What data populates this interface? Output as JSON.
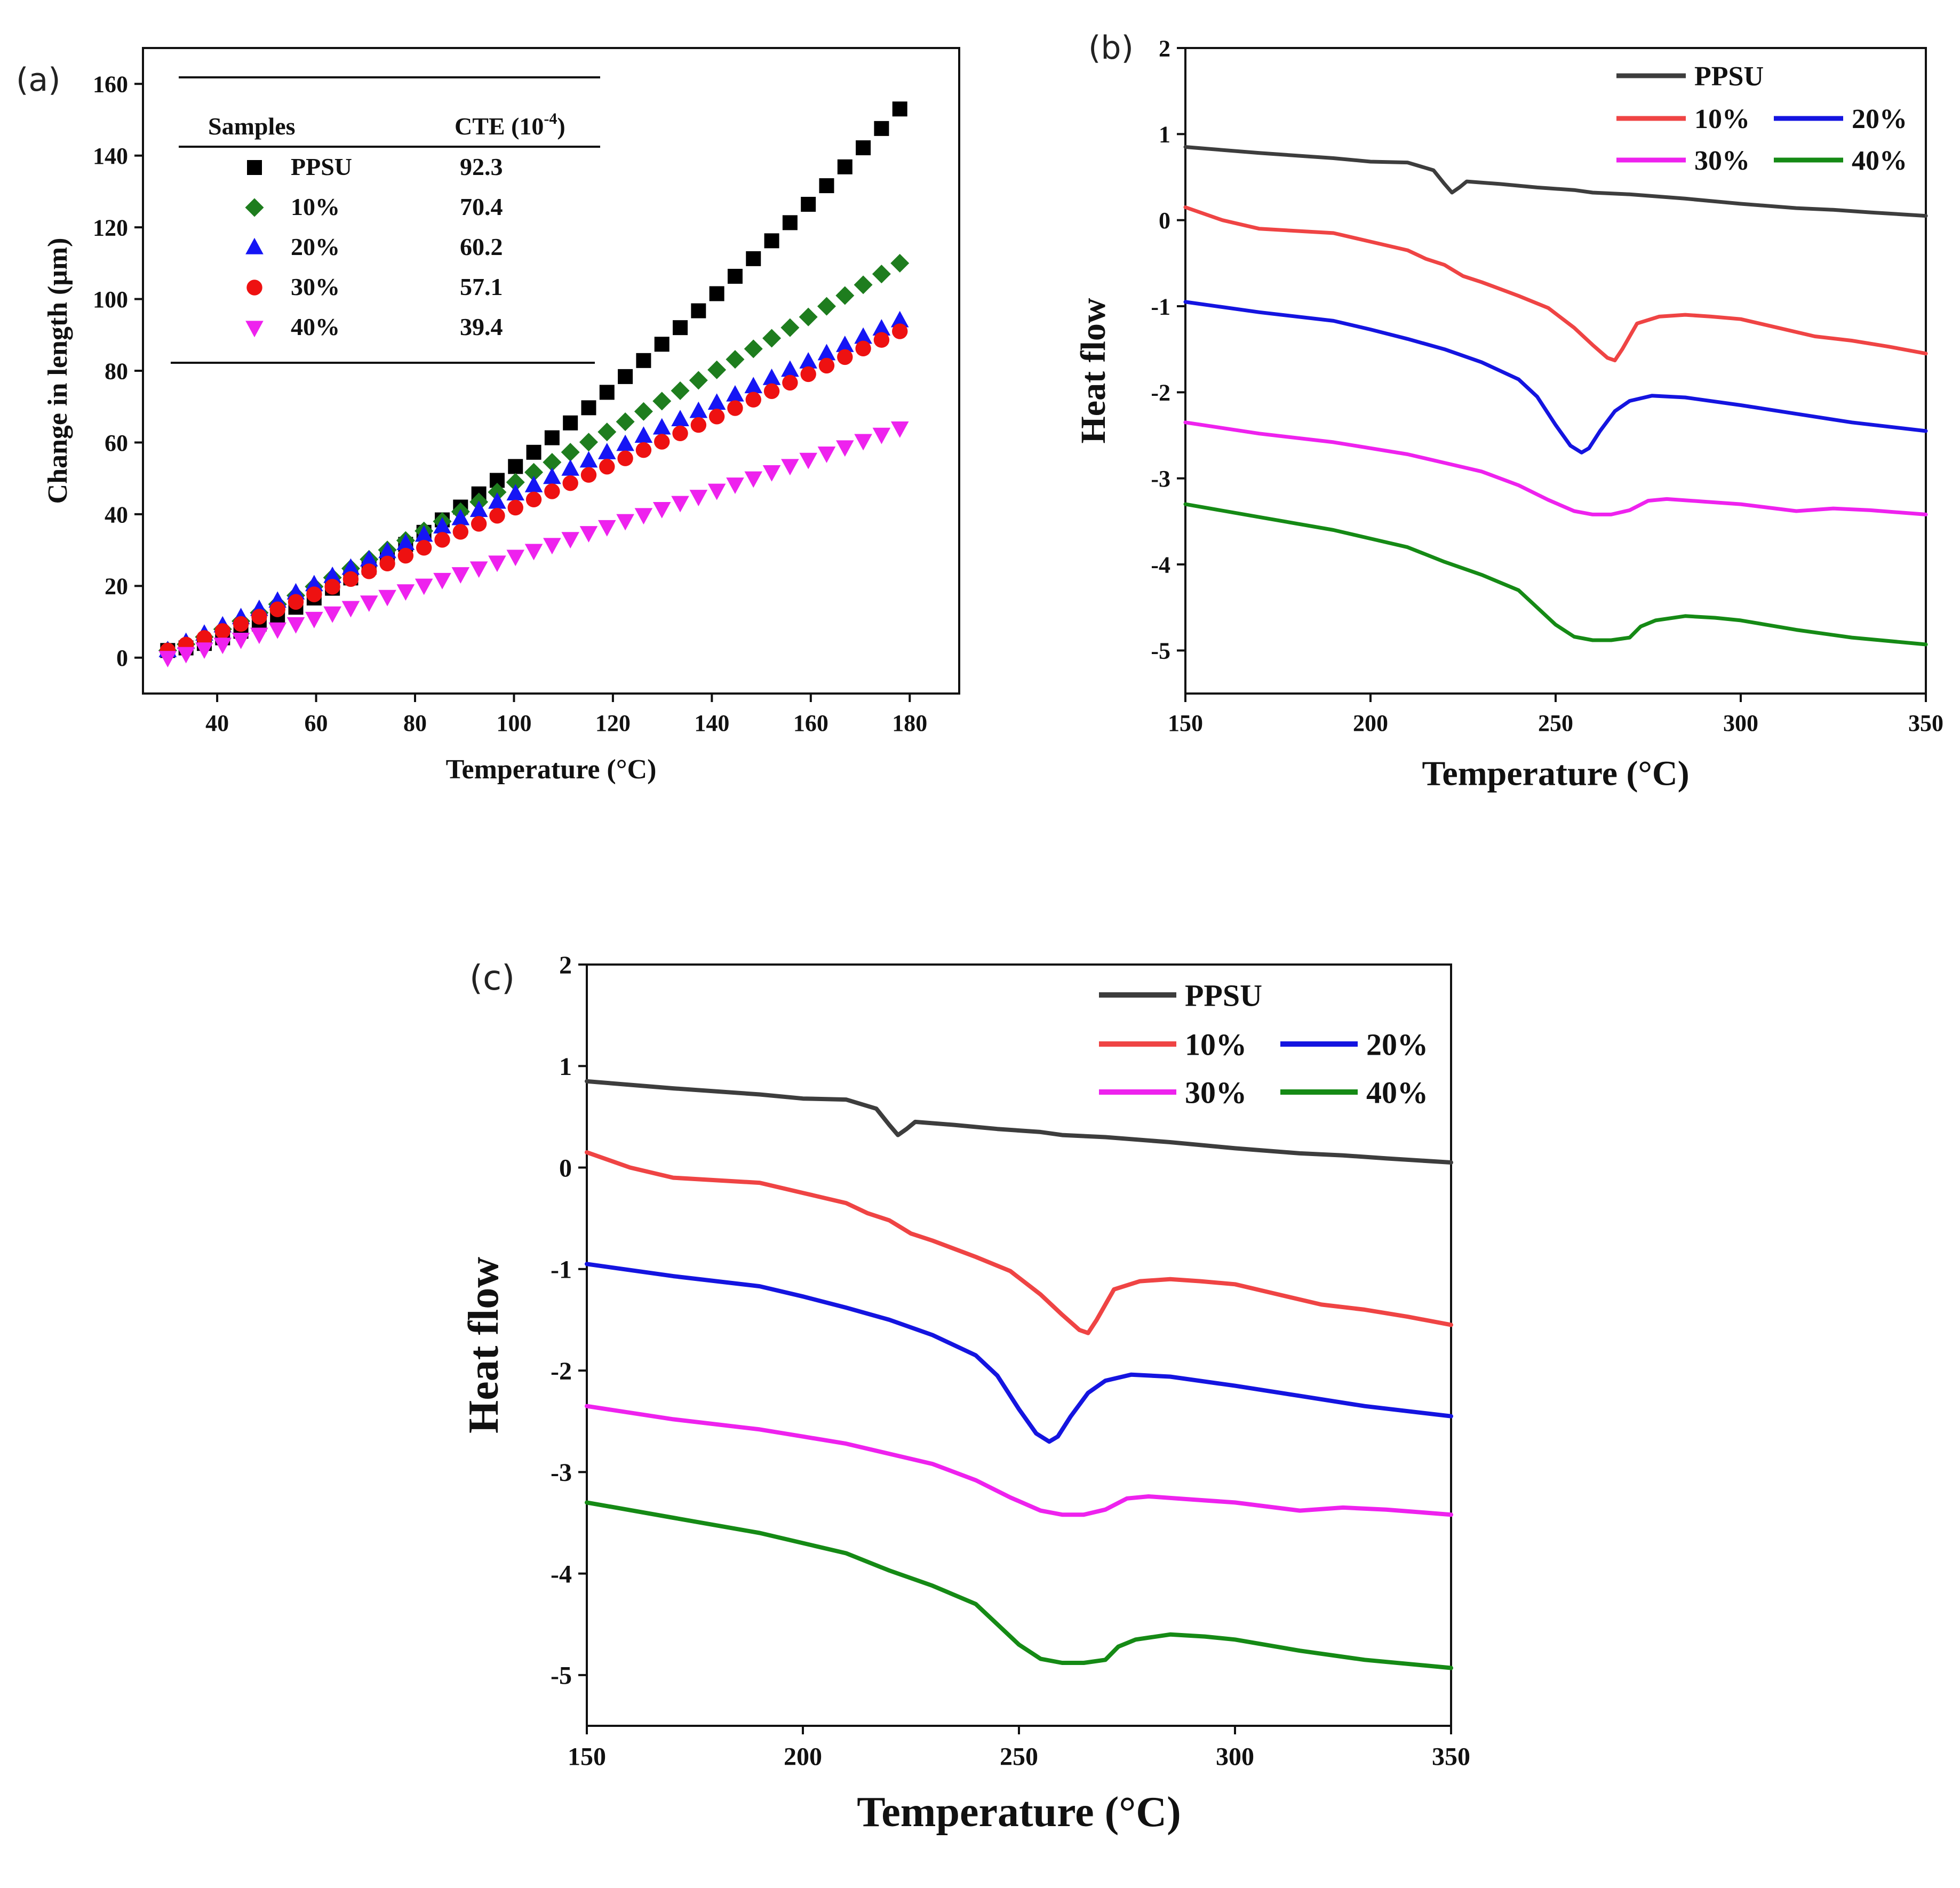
{
  "chart_data": [
    {
      "id": "a",
      "panel_label": "(a)",
      "type": "scatter",
      "xlabel": "Temperature (°C)",
      "ylabel": "Change in length (μm)",
      "xlim": [
        25,
        190
      ],
      "ylim": [
        -10,
        170
      ],
      "xticks": [
        40,
        60,
        80,
        100,
        120,
        140,
        160,
        180
      ],
      "yticks": [
        0,
        20,
        40,
        60,
        80,
        100,
        120,
        140,
        160
      ],
      "table": {
        "headers": [
          "Samples",
          "CTE (10",
          "-4",
          ")"
        ],
        "rows": [
          {
            "sample": "PPSU",
            "cte": "92.3"
          },
          {
            "sample": "10%",
            "cte": "70.4"
          },
          {
            "sample": "20%",
            "cte": "60.2"
          },
          {
            "sample": "30%",
            "cte": "57.1"
          },
          {
            "sample": "40%",
            "cte": "39.4"
          }
        ]
      },
      "series": [
        {
          "name": "PPSU",
          "color": "#000000",
          "marker": "square",
          "x_start": 30,
          "x_end": 178,
          "y_start": 2,
          "y_end": 153,
          "curve": 1.45
        },
        {
          "name": "10%",
          "color": "#1e7d1e",
          "marker": "diamond",
          "x_start": 30,
          "x_end": 178,
          "y_start": 2,
          "y_end": 110,
          "curve": 1.12
        },
        {
          "name": "20%",
          "color": "#1515f5",
          "marker": "triangle-up",
          "x_start": 30,
          "x_end": 178,
          "y_start": 2,
          "y_end": 94,
          "curve": 1.0
        },
        {
          "name": "30%",
          "color": "#ee1111",
          "marker": "circle",
          "x_start": 30,
          "x_end": 178,
          "y_start": 2,
          "y_end": 91,
          "curve": 1.08
        },
        {
          "name": "40%",
          "color": "#ee22ee",
          "marker": "triangle-down",
          "x_start": 30,
          "x_end": 178,
          "y_start": 0,
          "y_end": 64,
          "curve": 1.1
        }
      ]
    },
    {
      "id": "b",
      "panel_label": "(b)",
      "type": "line",
      "xlabel": "Temperature (°C)",
      "ylabel": "Heat flow",
      "xlim": [
        150,
        350
      ],
      "ylim": [
        -5.5,
        2
      ],
      "xticks": [
        150,
        200,
        250,
        300,
        350
      ],
      "yticks": [
        2,
        1,
        0,
        -1,
        -2,
        -3,
        -4,
        -5
      ],
      "legend": [
        "PPSU",
        "10%",
        "20%",
        "30%",
        "40%"
      ],
      "series": [
        {
          "name": "PPSU",
          "color": "#3d3d3d",
          "x": [
            150,
            170,
            190,
            200,
            210,
            217,
            220,
            222,
            224,
            226,
            235,
            245,
            255,
            260,
            270,
            285,
            300,
            315,
            325,
            335,
            350
          ],
          "y": [
            0.85,
            0.78,
            0.72,
            0.68,
            0.67,
            0.58,
            0.42,
            0.32,
            0.38,
            0.45,
            0.42,
            0.38,
            0.35,
            0.32,
            0.3,
            0.25,
            0.19,
            0.14,
            0.12,
            0.09,
            0.05
          ]
        },
        {
          "name": "10%",
          "color": "#ef4444",
          "x": [
            150,
            160,
            170,
            190,
            200,
            210,
            215,
            220,
            225,
            230,
            240,
            248,
            255,
            260,
            264,
            266,
            268,
            272,
            278,
            285,
            292,
            300,
            310,
            320,
            330,
            340,
            350
          ],
          "y": [
            0.15,
            0.0,
            -0.1,
            -0.15,
            -0.25,
            -0.35,
            -0.45,
            -0.52,
            -0.65,
            -0.72,
            -0.88,
            -1.02,
            -1.25,
            -1.45,
            -1.6,
            -1.63,
            -1.5,
            -1.2,
            -1.12,
            -1.1,
            -1.12,
            -1.15,
            -1.25,
            -1.35,
            -1.4,
            -1.47,
            -1.55
          ]
        },
        {
          "name": "20%",
          "color": "#1414e0",
          "x": [
            150,
            170,
            190,
            200,
            210,
            220,
            230,
            240,
            245,
            250,
            254,
            257,
            259,
            262,
            266,
            270,
            276,
            285,
            300,
            315,
            330,
            350
          ],
          "y": [
            -0.95,
            -1.07,
            -1.17,
            -1.27,
            -1.38,
            -1.5,
            -1.65,
            -1.85,
            -2.05,
            -2.38,
            -2.62,
            -2.7,
            -2.65,
            -2.45,
            -2.22,
            -2.1,
            -2.04,
            -2.06,
            -2.15,
            -2.25,
            -2.35,
            -2.45
          ]
        },
        {
          "name": "30%",
          "color": "#ee22ee",
          "x": [
            150,
            170,
            190,
            200,
            210,
            220,
            230,
            240,
            248,
            255,
            260,
            265,
            270,
            275,
            280,
            290,
            300,
            315,
            325,
            335,
            350
          ],
          "y": [
            -2.35,
            -2.48,
            -2.58,
            -2.65,
            -2.72,
            -2.82,
            -2.92,
            -3.08,
            -3.25,
            -3.38,
            -3.42,
            -3.42,
            -3.37,
            -3.26,
            -3.24,
            -3.27,
            -3.3,
            -3.38,
            -3.35,
            -3.37,
            -3.42
          ]
        },
        {
          "name": "40%",
          "color": "#158a15",
          "x": [
            150,
            170,
            190,
            200,
            210,
            220,
            230,
            240,
            245,
            250,
            255,
            260,
            265,
            270,
            273,
            277,
            285,
            293,
            300,
            315,
            330,
            350
          ],
          "y": [
            -3.3,
            -3.45,
            -3.6,
            -3.7,
            -3.8,
            -3.97,
            -4.12,
            -4.3,
            -4.5,
            -4.7,
            -4.84,
            -4.88,
            -4.88,
            -4.85,
            -4.72,
            -4.65,
            -4.6,
            -4.62,
            -4.65,
            -4.76,
            -4.85,
            -4.93
          ]
        }
      ]
    },
    {
      "id": "c",
      "panel_label": "(c)",
      "type": "line",
      "xlabel": "Temperature (°C)",
      "ylabel": "Heat flow",
      "xlim": [
        150,
        350
      ],
      "ylim": [
        -5.5,
        2
      ],
      "xticks": [
        150,
        200,
        250,
        300,
        350
      ],
      "yticks": [
        2,
        1,
        0,
        -1,
        -2,
        -3,
        -4,
        -5
      ],
      "legend": [
        "PPSU",
        "10%",
        "20%",
        "30%",
        "40%"
      ],
      "series": [
        {
          "name": "PPSU",
          "color": "#3d3d3d",
          "x": [
            150,
            170,
            190,
            200,
            210,
            217,
            220,
            222,
            224,
            226,
            235,
            245,
            255,
            260,
            270,
            285,
            300,
            315,
            325,
            335,
            350
          ],
          "y": [
            0.85,
            0.78,
            0.72,
            0.68,
            0.67,
            0.58,
            0.42,
            0.32,
            0.38,
            0.45,
            0.42,
            0.38,
            0.35,
            0.32,
            0.3,
            0.25,
            0.19,
            0.14,
            0.12,
            0.09,
            0.05
          ]
        },
        {
          "name": "10%",
          "color": "#ef4444",
          "x": [
            150,
            160,
            170,
            190,
            200,
            210,
            215,
            220,
            225,
            230,
            240,
            248,
            255,
            260,
            264,
            266,
            268,
            272,
            278,
            285,
            292,
            300,
            310,
            320,
            330,
            340,
            350
          ],
          "y": [
            0.15,
            0.0,
            -0.1,
            -0.15,
            -0.25,
            -0.35,
            -0.45,
            -0.52,
            -0.65,
            -0.72,
            -0.88,
            -1.02,
            -1.25,
            -1.45,
            -1.6,
            -1.63,
            -1.5,
            -1.2,
            -1.12,
            -1.1,
            -1.12,
            -1.15,
            -1.25,
            -1.35,
            -1.4,
            -1.47,
            -1.55
          ]
        },
        {
          "name": "20%",
          "color": "#1414e0",
          "x": [
            150,
            170,
            190,
            200,
            210,
            220,
            230,
            240,
            245,
            250,
            254,
            257,
            259,
            262,
            266,
            270,
            276,
            285,
            300,
            315,
            330,
            350
          ],
          "y": [
            -0.95,
            -1.07,
            -1.17,
            -1.27,
            -1.38,
            -1.5,
            -1.65,
            -1.85,
            -2.05,
            -2.38,
            -2.62,
            -2.7,
            -2.65,
            -2.45,
            -2.22,
            -2.1,
            -2.04,
            -2.06,
            -2.15,
            -2.25,
            -2.35,
            -2.45
          ]
        },
        {
          "name": "30%",
          "color": "#ee22ee",
          "x": [
            150,
            170,
            190,
            200,
            210,
            220,
            230,
            240,
            248,
            255,
            260,
            265,
            270,
            275,
            280,
            290,
            300,
            315,
            325,
            335,
            350
          ],
          "y": [
            -2.35,
            -2.48,
            -2.58,
            -2.65,
            -2.72,
            -2.82,
            -2.92,
            -3.08,
            -3.25,
            -3.38,
            -3.42,
            -3.42,
            -3.37,
            -3.26,
            -3.24,
            -3.27,
            -3.3,
            -3.38,
            -3.35,
            -3.37,
            -3.42
          ]
        },
        {
          "name": "40%",
          "color": "#158a15",
          "x": [
            150,
            170,
            190,
            200,
            210,
            220,
            230,
            240,
            245,
            250,
            255,
            260,
            265,
            270,
            273,
            277,
            285,
            293,
            300,
            315,
            330,
            350
          ],
          "y": [
            -3.3,
            -3.45,
            -3.6,
            -3.7,
            -3.8,
            -3.97,
            -4.12,
            -4.3,
            -4.5,
            -4.7,
            -4.84,
            -4.88,
            -4.88,
            -4.85,
            -4.72,
            -4.65,
            -4.6,
            -4.62,
            -4.65,
            -4.76,
            -4.85,
            -4.93
          ]
        }
      ]
    }
  ]
}
